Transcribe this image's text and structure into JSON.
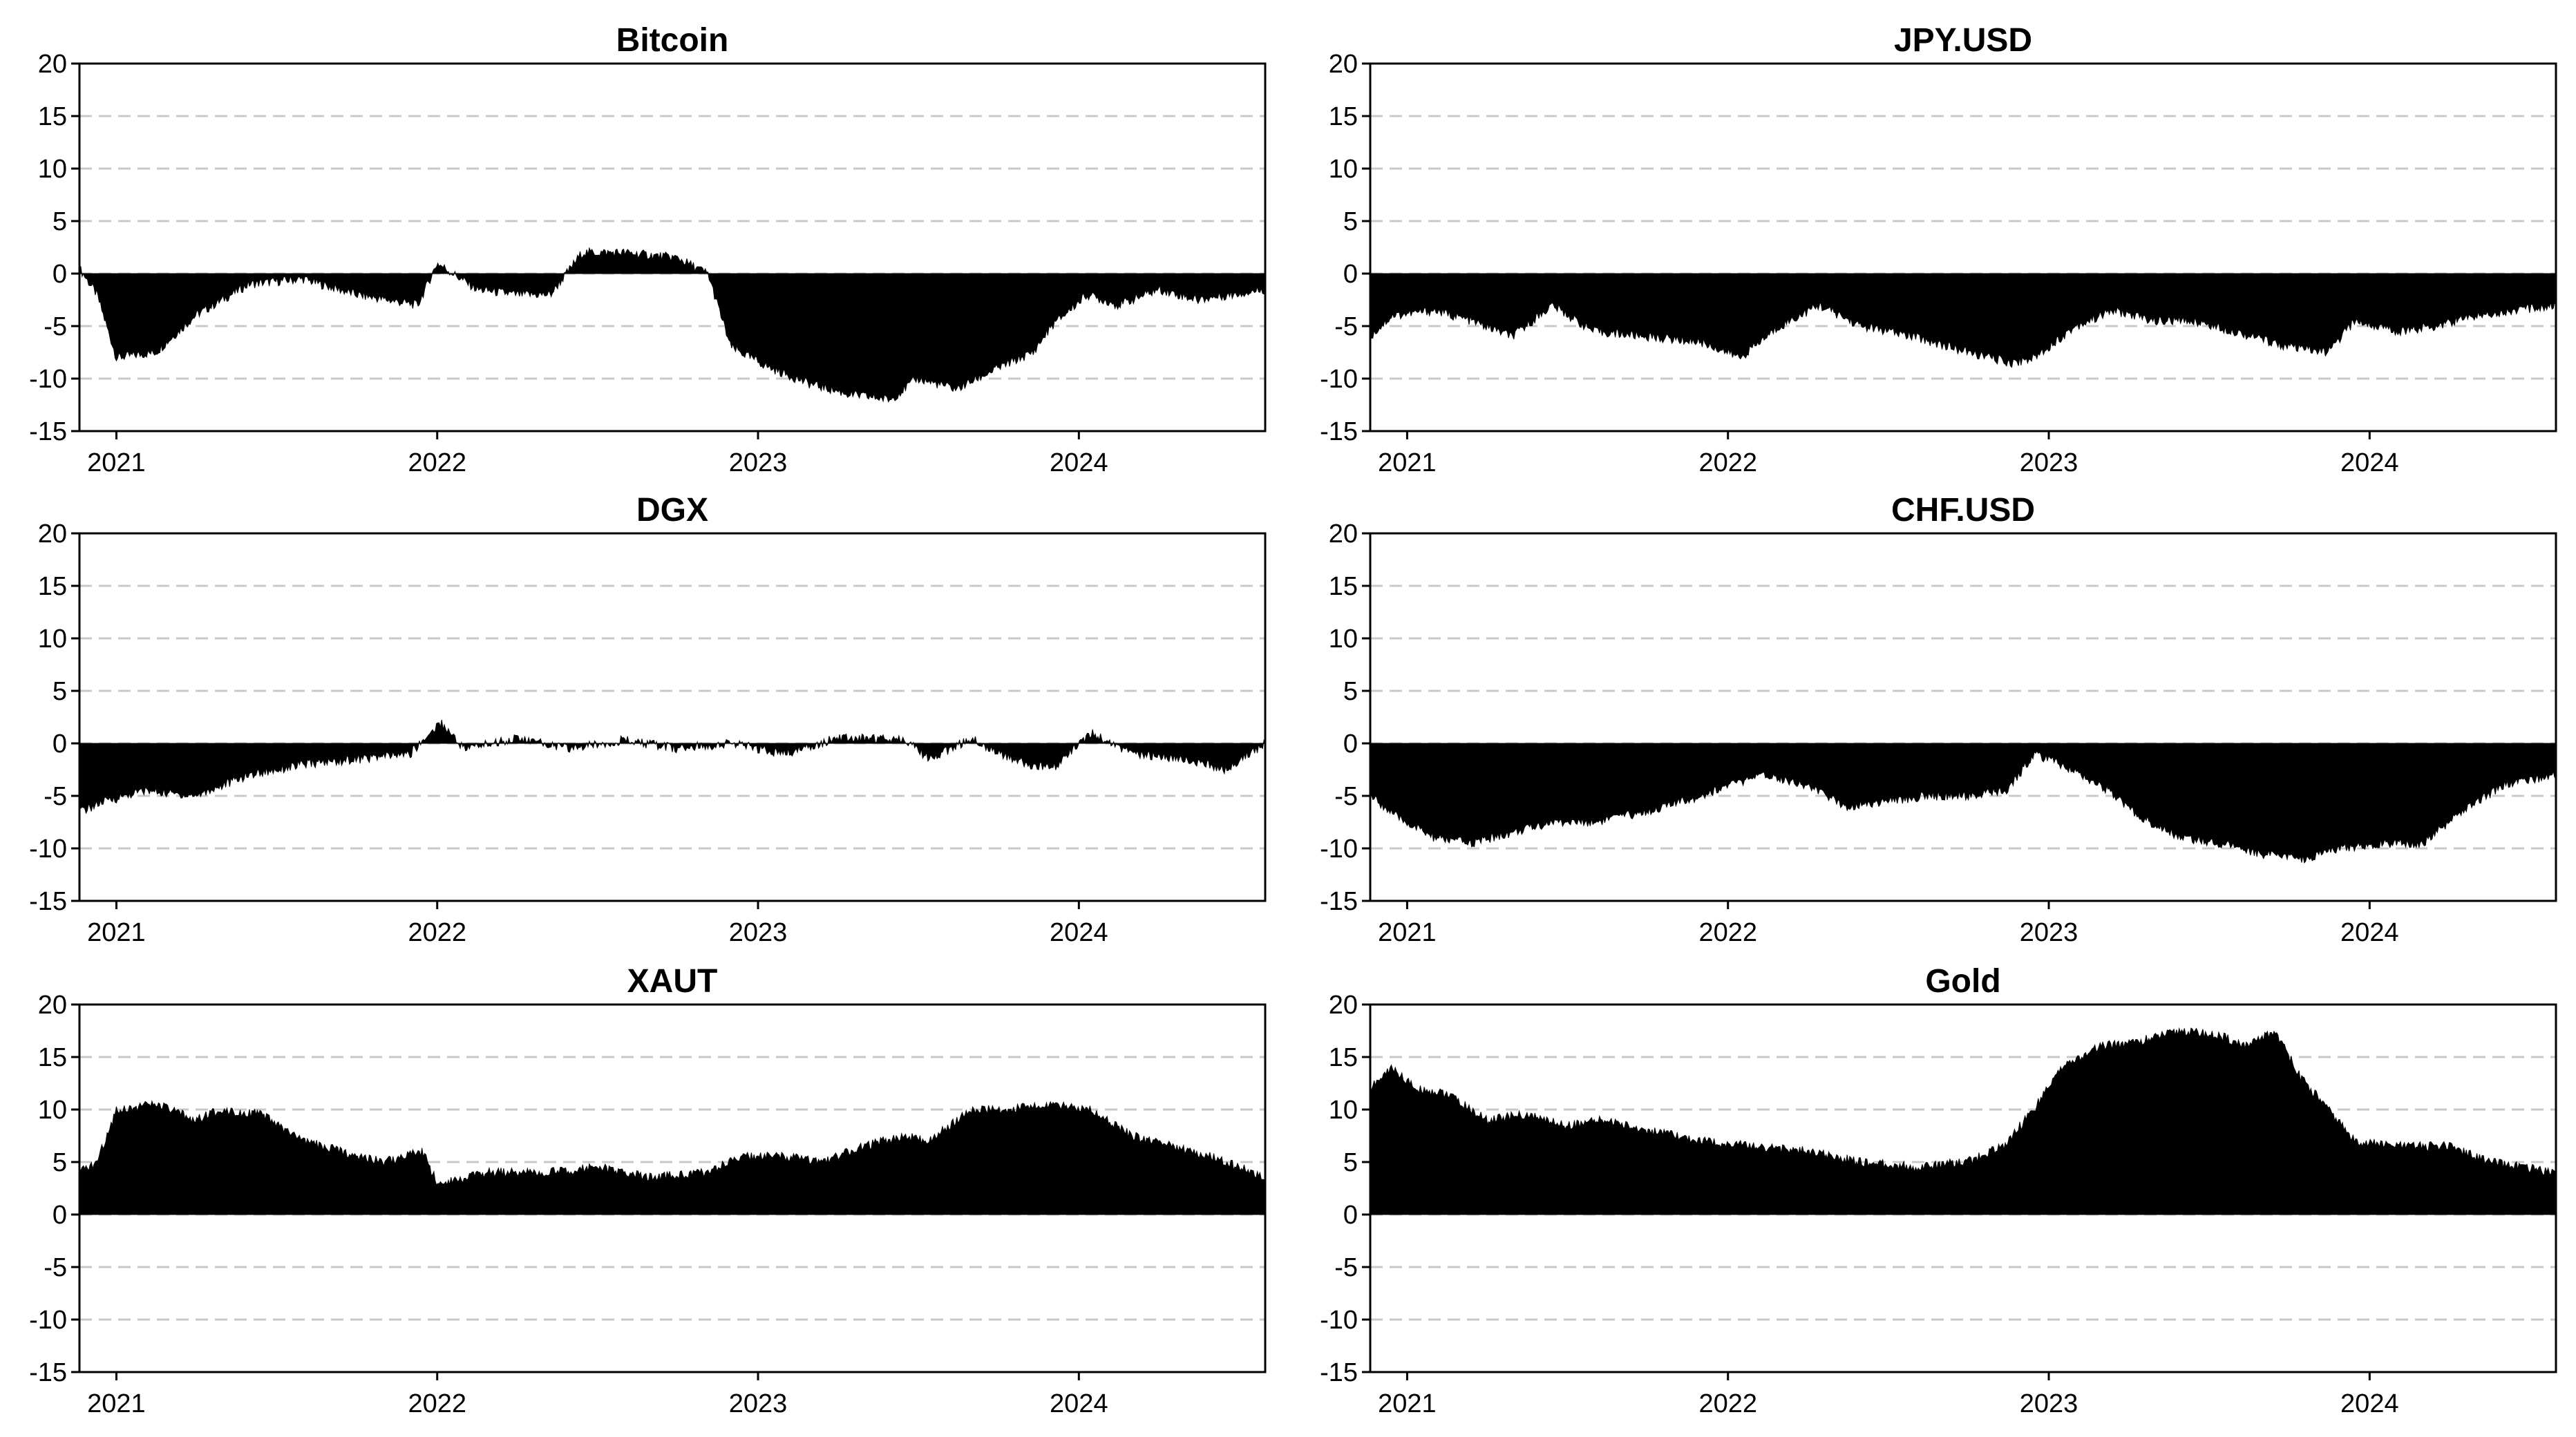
{
  "chart_data": [
    {
      "type": "area",
      "title": "Bitcoin",
      "xlabel": "",
      "ylabel": "",
      "xlim": [
        "2020-11-20",
        "2024-07-31"
      ],
      "ylim": [
        -15,
        20
      ],
      "yticks": [
        20,
        15,
        10,
        5,
        0,
        -5,
        -10,
        -15
      ],
      "xticks": [
        "2021",
        "2022",
        "2023",
        "2024"
      ],
      "grid": "dashed horizontal",
      "x": [
        "2020-11-20",
        "2020-12-10",
        "2021-01-01",
        "2021-02-15",
        "2021-04-01",
        "2021-06-01",
        "2021-08-01",
        "2021-10-01",
        "2021-12-10",
        "2022-01-01",
        "2022-02-15",
        "2022-04-01",
        "2022-05-10",
        "2022-06-15",
        "2022-08-01",
        "2022-10-01",
        "2022-11-05",
        "2022-12-01",
        "2023-01-15",
        "2023-03-01",
        "2023-04-15",
        "2023-06-01",
        "2023-07-01",
        "2023-08-15",
        "2023-10-01",
        "2023-11-10",
        "2023-12-01",
        "2024-01-10",
        "2024-02-15",
        "2024-04-01",
        "2024-05-15",
        "2024-07-31"
      ],
      "values": [
        0.5,
        -2,
        -8,
        -7.5,
        -4,
        -1,
        -0.5,
        -2,
        -3,
        1,
        -1.5,
        -2,
        -2,
        2,
        2,
        1.5,
        0,
        -7,
        -9,
        -10.5,
        -11.5,
        -12,
        -10,
        -11,
        -9,
        -7.5,
        -5,
        -2,
        -3,
        -1.5,
        -2.5,
        -1.5
      ]
    },
    {
      "type": "area",
      "title": "JPY.USD",
      "xlabel": "",
      "ylabel": "",
      "xlim": [
        "2020-11-20",
        "2024-07-31"
      ],
      "ylim": [
        -15,
        20
      ],
      "yticks": [
        20,
        15,
        10,
        5,
        0,
        -5,
        -10,
        -15
      ],
      "xticks": [
        "2021",
        "2022",
        "2023",
        "2024"
      ],
      "grid": "dashed horizontal",
      "x": [
        "2020-11-20",
        "2020-12-15",
        "2021-02-01",
        "2021-03-15",
        "2021-05-01",
        "2021-06-15",
        "2021-08-01",
        "2021-10-01",
        "2021-12-01",
        "2022-01-15",
        "2022-03-01",
        "2022-04-15",
        "2022-06-01",
        "2022-08-01",
        "2022-10-01",
        "2022-11-20",
        "2022-12-15",
        "2023-02-01",
        "2023-03-15",
        "2023-05-01",
        "2023-06-15",
        "2023-08-01",
        "2023-10-01",
        "2023-11-15",
        "2023-12-15",
        "2024-02-01",
        "2024-03-15",
        "2024-05-01",
        "2024-07-31"
      ],
      "values": [
        -6,
        -4,
        -3.5,
        -4.5,
        -6,
        -3,
        -5.5,
        -6,
        -6.5,
        -8,
        -5,
        -3,
        -5,
        -6,
        -7.5,
        -8.5,
        -8,
        -5,
        -3.5,
        -4.5,
        -4.5,
        -5.5,
        -7,
        -7.5,
        -4.5,
        -5.5,
        -5,
        -4,
        -3
      ]
    },
    {
      "type": "area",
      "title": "DGX",
      "xlabel": "",
      "ylabel": "",
      "xlim": [
        "2020-11-20",
        "2024-07-31"
      ],
      "ylim": [
        -15,
        20
      ],
      "yticks": [
        20,
        15,
        10,
        5,
        0,
        -5,
        -10,
        -15
      ],
      "xticks": [
        "2021",
        "2022",
        "2023",
        "2024"
      ],
      "grid": "dashed horizontal",
      "x": [
        "2020-11-20",
        "2020-12-20",
        "2021-02-01",
        "2021-04-01",
        "2021-06-01",
        "2021-08-01",
        "2021-10-01",
        "2021-12-01",
        "2022-01-05",
        "2022-02-01",
        "2022-04-01",
        "2022-06-01",
        "2022-08-01",
        "2022-10-01",
        "2022-12-01",
        "2023-02-01",
        "2023-04-01",
        "2023-06-15",
        "2023-07-15",
        "2023-09-01",
        "2023-10-15",
        "2023-12-01",
        "2024-01-15",
        "2024-03-01",
        "2024-05-01",
        "2024-06-15",
        "2024-07-31"
      ],
      "values": [
        -6.5,
        -5.5,
        -4.5,
        -5,
        -3,
        -2,
        -1.5,
        -1,
        2,
        -0.5,
        0.5,
        -0.5,
        0.3,
        -0.5,
        0,
        -1,
        0.5,
        0.5,
        -1.5,
        0.5,
        -1.5,
        -2.5,
        1,
        -1,
        -1.5,
        -2.5,
        0
      ]
    },
    {
      "type": "area",
      "title": "CHF.USD",
      "xlabel": "",
      "ylabel": "",
      "xlim": [
        "2020-11-20",
        "2024-07-31"
      ],
      "ylim": [
        -15,
        20
      ],
      "yticks": [
        20,
        15,
        10,
        5,
        0,
        -5,
        -10,
        -15
      ],
      "xticks": [
        "2021",
        "2022",
        "2023",
        "2024"
      ],
      "grid": "dashed horizontal",
      "x": [
        "2020-11-20",
        "2020-12-20",
        "2021-02-01",
        "2021-03-15",
        "2021-05-01",
        "2021-06-15",
        "2021-08-01",
        "2021-10-01",
        "2021-12-01",
        "2022-01-01",
        "2022-02-15",
        "2022-04-01",
        "2022-05-15",
        "2022-07-01",
        "2022-08-15",
        "2022-10-01",
        "2022-11-15",
        "2022-12-15",
        "2023-01-15",
        "2023-03-01",
        "2023-04-15",
        "2023-06-01",
        "2023-07-15",
        "2023-09-01",
        "2023-10-15",
        "2023-12-01",
        "2024-01-15",
        "2024-03-01",
        "2024-04-15",
        "2024-06-01",
        "2024-07-31"
      ],
      "values": [
        -5,
        -7,
        -9,
        -9.5,
        -8.5,
        -7.5,
        -7.5,
        -6.5,
        -5,
        -4,
        -3,
        -4,
        -6,
        -5.5,
        -5,
        -5,
        -4.5,
        -1,
        -2,
        -4,
        -7,
        -9,
        -9.5,
        -10.5,
        -11,
        -10,
        -9.5,
        -9.5,
        -6.5,
        -4,
        -3
      ]
    },
    {
      "type": "area",
      "title": "XAUT",
      "xlabel": "",
      "ylabel": "",
      "xlim": [
        "2020-11-20",
        "2024-07-31"
      ],
      "ylim": [
        -15,
        20
      ],
      "yticks": [
        20,
        15,
        10,
        5,
        0,
        -5,
        -10,
        -15
      ],
      "xticks": [
        "2021",
        "2022",
        "2023",
        "2024"
      ],
      "grid": "dashed horizontal",
      "x": [
        "2020-11-20",
        "2020-12-10",
        "2021-01-01",
        "2021-02-15",
        "2021-04-01",
        "2021-05-01",
        "2021-06-15",
        "2021-08-01",
        "2021-09-15",
        "2021-11-01",
        "2021-12-15",
        "2022-01-01",
        "2022-03-01",
        "2022-05-01",
        "2022-07-01",
        "2022-09-01",
        "2022-11-01",
        "2022-12-15",
        "2023-02-01",
        "2023-03-15",
        "2023-05-01",
        "2023-06-15",
        "2023-07-15",
        "2023-09-01",
        "2023-10-15",
        "2023-12-01",
        "2024-01-15",
        "2024-03-01",
        "2024-04-15",
        "2024-06-01",
        "2024-07-31"
      ],
      "values": [
        4,
        5,
        10,
        10.5,
        9,
        10,
        9.5,
        7,
        6,
        5,
        6,
        3,
        4,
        4,
        4.5,
        3.5,
        4,
        5.5,
        5.5,
        5,
        6.5,
        7.5,
        7,
        10,
        10,
        10.5,
        10,
        7.5,
        6.5,
        5.5,
        3.5
      ]
    },
    {
      "type": "area",
      "title": "Gold",
      "xlabel": "",
      "ylabel": "",
      "xlim": [
        "2020-11-20",
        "2024-07-31"
      ],
      "ylim": [
        -15,
        20
      ],
      "yticks": [
        20,
        15,
        10,
        5,
        0,
        -5,
        -10,
        -15
      ],
      "xticks": [
        "2021",
        "2022",
        "2023",
        "2024"
      ],
      "grid": "dashed horizontal",
      "x": [
        "2020-11-20",
        "2020-12-15",
        "2021-01-10",
        "2021-02-15",
        "2021-04-01",
        "2021-05-15",
        "2021-07-01",
        "2021-08-15",
        "2021-10-01",
        "2021-12-01",
        "2022-02-01",
        "2022-04-01",
        "2022-06-01",
        "2022-08-01",
        "2022-10-01",
        "2022-11-10",
        "2022-12-15",
        "2023-01-15",
        "2023-03-01",
        "2023-04-15",
        "2023-06-01",
        "2023-07-15",
        "2023-08-15",
        "2023-09-15",
        "2023-10-15",
        "2023-11-15",
        "2023-12-15",
        "2024-02-01",
        "2024-04-01",
        "2024-05-15",
        "2024-07-31"
      ],
      "values": [
        12,
        14,
        12,
        11.5,
        9,
        9.5,
        8.5,
        9,
        8,
        7,
        6.5,
        6,
        5,
        4.5,
        5,
        6.5,
        10,
        14,
        16,
        16.5,
        17.5,
        17,
        16,
        17.5,
        13,
        10,
        7,
        6.5,
        6.5,
        5,
        4
      ]
    }
  ]
}
